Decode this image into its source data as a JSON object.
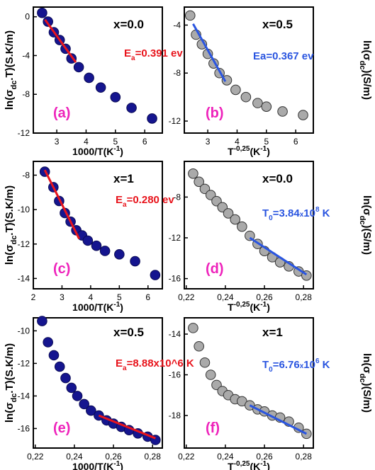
{
  "colors": {
    "left_marker_fill": "#15158f",
    "right_marker_fill": "#aaaaaa",
    "fit_left": "#e8141c",
    "fit_right": "#2a55e0",
    "panel_letter": "#ee22bb",
    "axis": "#000000"
  },
  "chart_data": [
    {
      "type": "scatter",
      "panel": "(a)",
      "label": "x=0.0",
      "xlabel": "1000/T(K-1)",
      "ylabel": "ln(σdc.T)(S.K/m)",
      "xlim": [
        2.2,
        6.6
      ],
      "ylim": [
        -12,
        1
      ],
      "xticks": [
        3,
        4,
        5,
        6
      ],
      "yticks": [
        0,
        -4,
        -8,
        -12
      ],
      "x": [
        2.5,
        2.7,
        2.9,
        3.1,
        3.3,
        3.5,
        3.75,
        4.1,
        4.5,
        5.0,
        5.55,
        6.25
      ],
      "y": [
        0.4,
        -0.5,
        -1.6,
        -2.4,
        -3.3,
        -4.3,
        -5.2,
        -6.3,
        -7.3,
        -8.3,
        -9.4,
        -10.5
      ],
      "fit": {
        "x": [
          2.6,
          3.65
        ],
        "y": [
          -0.3,
          -4.7
        ],
        "label": "Ea=0.391 ev"
      }
    },
    {
      "type": "scatter",
      "panel": "(b)",
      "label": "x=0.5",
      "xlabel": "1000/T(K-1)",
      "ylabel": "ln(σdc.T)(S.K/m)",
      "xlim": [
        2.2,
        6.6
      ],
      "ylim": [
        -13,
        -2.5
      ],
      "xticks": [
        3,
        4,
        5,
        6
      ],
      "yticks": [
        -4,
        -8,
        -12
      ],
      "x": [
        2.4,
        2.6,
        2.8,
        3.0,
        3.2,
        3.4,
        3.65,
        3.95,
        4.3,
        4.7,
        5.0,
        5.55,
        6.25
      ],
      "y": [
        -3.2,
        -4.8,
        -5.6,
        -6.4,
        -7.2,
        -8.0,
        -8.6,
        -9.4,
        -10.0,
        -10.5,
        -10.8,
        -11.2,
        -11.5
      ],
      "fit": {
        "x": [
          2.5,
          3.6
        ],
        "y": [
          -3.9,
          -8.7
        ],
        "label": "Ea=0.367 ev"
      }
    },
    {
      "type": "scatter",
      "panel": "(c)",
      "label": "x=1",
      "xlabel": "1000/T(K-1)",
      "ylabel": "ln(σdc.T)(S.K/m)",
      "xlim": [
        2.0,
        6.5
      ],
      "ylim": [
        -14.6,
        -7.2
      ],
      "xticks": [
        2,
        3,
        4,
        5,
        6
      ],
      "yticks": [
        -8,
        -10,
        -12,
        -14
      ],
      "x": [
        2.4,
        2.7,
        2.9,
        3.1,
        3.3,
        3.5,
        3.7,
        3.9,
        4.2,
        4.5,
        5.0,
        5.55,
        6.25
      ],
      "y": [
        -7.8,
        -8.7,
        -9.5,
        -10.2,
        -10.7,
        -11.2,
        -11.5,
        -11.8,
        -12.1,
        -12.4,
        -12.6,
        -13.0,
        -13.8
      ],
      "fit": {
        "x": [
          2.4,
          3.6
        ],
        "y": [
          -7.7,
          -11.7
        ],
        "label": "Ea=0.280 ev"
      }
    },
    {
      "type": "scatter",
      "panel": "(d)",
      "label": "x=0.0",
      "xlabel": "T-0,25(K-1)",
      "ylabel": "ln(σdc)(S/m)",
      "xlim": [
        0.219,
        0.285
      ],
      "ylim": [
        -17,
        -4.5
      ],
      "xticks": [
        "0,22",
        "0,24",
        "0,26",
        "0,28"
      ],
      "xtick_values": [
        0.22,
        0.24,
        0.26,
        0.28
      ],
      "yticks": [
        -8,
        -12,
        -16
      ],
      "x": [
        0.2235,
        0.2265,
        0.2295,
        0.2325,
        0.2355,
        0.2385,
        0.2415,
        0.245,
        0.2485,
        0.2525,
        0.2565,
        0.26,
        0.264,
        0.268,
        0.2725,
        0.2775,
        0.2815
      ],
      "y": [
        -5.7,
        -6.5,
        -7.2,
        -7.8,
        -8.4,
        -9.0,
        -9.6,
        -10.2,
        -10.9,
        -11.8,
        -12.6,
        -13.3,
        -13.9,
        -14.4,
        -14.8,
        -15.3,
        -15.7
      ],
      "fit": {
        "x": [
          0.2525,
          0.2815
        ],
        "y": [
          -12.0,
          -15.6
        ],
        "label": "T0=3.84x10^8 K"
      }
    },
    {
      "type": "scatter",
      "panel": "(e)",
      "label": "x=0.5",
      "xlabel": "T-0,25(K-1)",
      "ylabel": "ln(σdc)(S/m)",
      "xlim": [
        0.219,
        0.285
      ],
      "ylim": [
        -17.2,
        -9.2
      ],
      "xticks": [
        "0,22",
        "0,24",
        "0,26",
        "0,28"
      ],
      "xtick_values": [
        0.22,
        0.24,
        0.26,
        0.28
      ],
      "yticks": [
        -10,
        -12,
        -14,
        -16
      ],
      "x": [
        0.2235,
        0.2265,
        0.2295,
        0.2325,
        0.2355,
        0.2385,
        0.2415,
        0.245,
        0.2485,
        0.2525,
        0.2565,
        0.26,
        0.264,
        0.268,
        0.2725,
        0.2775,
        0.2815
      ],
      "y": [
        -9.4,
        -10.7,
        -11.5,
        -12.2,
        -12.9,
        -13.5,
        -14.0,
        -14.5,
        -14.9,
        -15.2,
        -15.5,
        -15.7,
        -15.9,
        -16.1,
        -16.3,
        -16.5,
        -16.7
      ],
      "fit": {
        "x": [
          0.2525,
          0.2815
        ],
        "y": [
          -15.2,
          -16.6
        ],
        "label": "T0=8.88x10^6 K"
      }
    },
    {
      "type": "scatter",
      "panel": "(f)",
      "label": "x=1",
      "xlabel": "T-0,25(K-1)",
      "ylabel": "ln(σdc)(S/m)",
      "xlim": [
        0.219,
        0.285
      ],
      "ylim": [
        -19.6,
        -13.2
      ],
      "xticks": [
        "0,22",
        "0,24",
        "0,26",
        "0,28"
      ],
      "xtick_values": [
        0.22,
        0.24,
        0.26,
        0.28
      ],
      "yticks": [
        -14,
        -16,
        -18
      ],
      "x": [
        0.2235,
        0.2265,
        0.2295,
        0.2325,
        0.2355,
        0.2385,
        0.2415,
        0.245,
        0.2485,
        0.2525,
        0.2565,
        0.26,
        0.264,
        0.268,
        0.2725,
        0.2775,
        0.2815
      ],
      "y": [
        -13.7,
        -14.6,
        -15.4,
        -16.0,
        -16.5,
        -16.8,
        -17.0,
        -17.2,
        -17.3,
        -17.5,
        -17.7,
        -17.8,
        -18.0,
        -18.1,
        -18.3,
        -18.6,
        -18.9
      ],
      "fit": {
        "x": [
          0.2525,
          0.2815
        ],
        "y": [
          -17.5,
          -18.9
        ],
        "label": "T0=6.76x10^6 K"
      }
    }
  ]
}
